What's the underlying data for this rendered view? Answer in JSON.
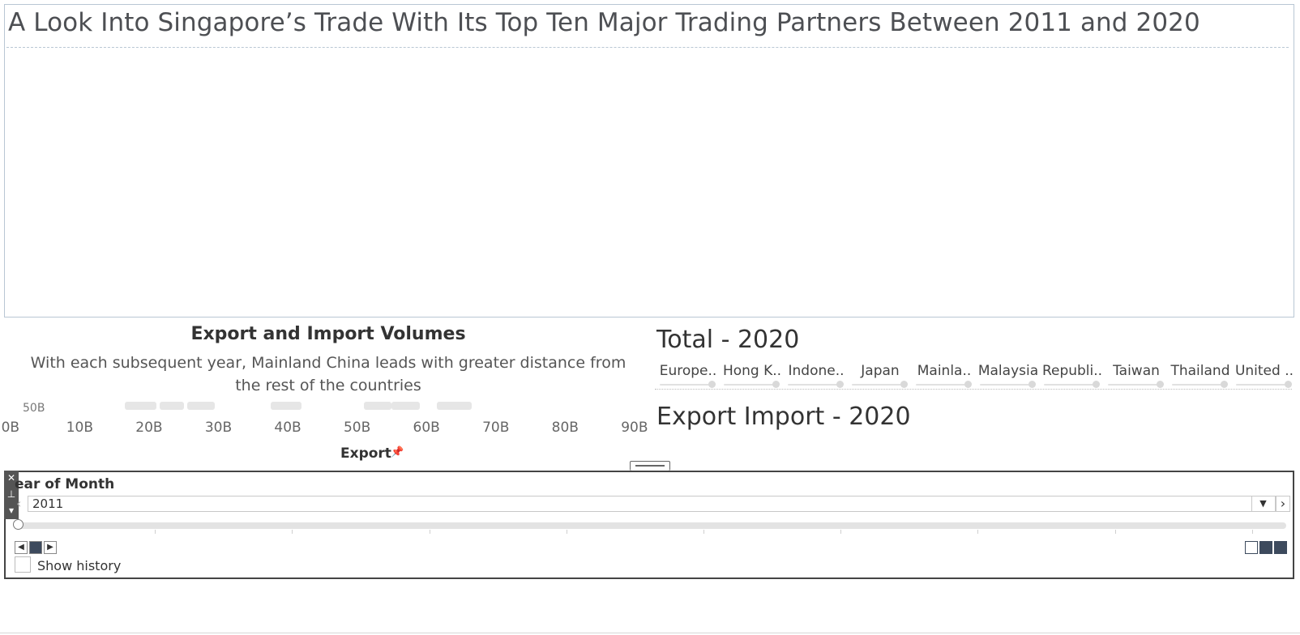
{
  "dashboard": {
    "title": "A Look Into Singapore’s Trade With Its Top Ten Major Trading Partners Between 2011 and 2020"
  },
  "export_chart": {
    "title": "Export and Import Volumes",
    "subtitle": "With each subsequent year, Mainland China leads with greater distance from the rest of the countries",
    "cut_off_label": "50B",
    "axis_title": "Export",
    "pin_icon": "pin-icon",
    "x_ticks": [
      "0B",
      "10B",
      "20B",
      "30B",
      "40B",
      "50B",
      "60B",
      "70B",
      "80B",
      "90B"
    ],
    "x_tick_values": [
      0,
      10,
      20,
      30,
      40,
      50,
      60,
      70,
      80,
      90
    ],
    "x_range": [
      -1.5,
      92
    ],
    "ghost_marks": [
      {
        "from": 16.5,
        "to": 21
      },
      {
        "from": 21.5,
        "to": 25
      },
      {
        "from": 25.5,
        "to": 29.5
      },
      {
        "from": 37.5,
        "to": 42
      },
      {
        "from": 51,
        "to": 55
      },
      {
        "from": 55,
        "to": 59
      },
      {
        "from": 61.5,
        "to": 66.5
      }
    ]
  },
  "total_panel": {
    "title": "Total - 2020",
    "partners": [
      "Europe..",
      "Hong K..",
      "Indone..",
      "Japan",
      "Mainla..",
      "Malaysia",
      "Republi..",
      "Taiwan",
      "Thailand",
      "United .."
    ]
  },
  "export_import_panel": {
    "title": "Export Import - 2020"
  },
  "pages_control": {
    "label": "ear of Month",
    "selected_value": "2011",
    "close_icon": "close-icon",
    "pin_icon": "pin-icon",
    "menu_icon": "chevron-down-icon",
    "prev_icon": "chevron-left-icon",
    "next_icon": "chevron-right-icon",
    "dropdown_icon": "chevron-down-icon",
    "slider_position": 0,
    "show_history_label": "Show history",
    "show_history_checked": false
  },
  "colors": {
    "title_text": "#4d4f53",
    "panel_border": "#b9c7d4",
    "control_dark": "#3d4a5d"
  }
}
